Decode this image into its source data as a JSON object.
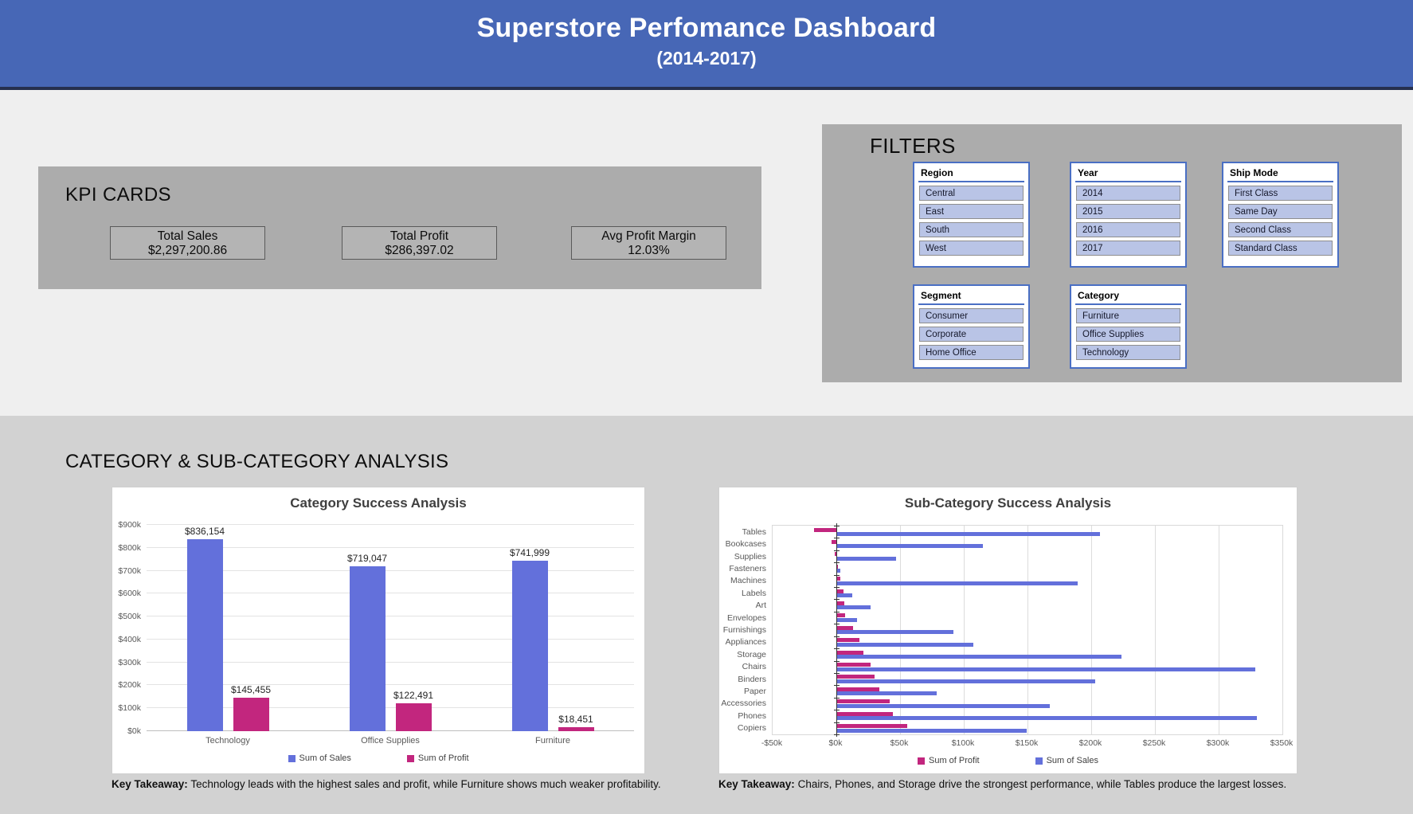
{
  "header": {
    "title": "Superstore Perfomance Dashboard",
    "subtitle": "(2014-2017)"
  },
  "kpi": {
    "title": "KPI CARDS",
    "cards": [
      {
        "label": "Total Sales",
        "value": "$2,297,200.86"
      },
      {
        "label": "Total Profit",
        "value": "$286,397.02"
      },
      {
        "label": "Avg Profit Margin",
        "value": "12.03%"
      }
    ]
  },
  "filters": {
    "title": "FILTERS",
    "slicers": [
      {
        "name": "Region",
        "items": [
          "Central",
          "East",
          "South",
          "West"
        ]
      },
      {
        "name": "Year",
        "items": [
          "2014",
          "2015",
          "2016",
          "2017"
        ]
      },
      {
        "name": "Ship Mode",
        "items": [
          "First Class",
          "Same Day",
          "Second Class",
          "Standard Class"
        ]
      },
      {
        "name": "Segment",
        "items": [
          "Consumer",
          "Corporate",
          "Home Office"
        ]
      },
      {
        "name": "Category",
        "items": [
          "Furniture",
          "Office Supplies",
          "Technology"
        ]
      }
    ]
  },
  "analysis": {
    "title": "CATEGORY & SUB-CATEGORY ANALYSIS",
    "takeaways": [
      {
        "prefix": "Key Takeaway:",
        "text": " Technology leads with the highest sales and profit, while Furniture shows much weaker profitability."
      },
      {
        "prefix": "Key Takeaway:",
        "text": " Chairs, Phones, and Storage drive the strongest performance, while Tables produce the largest losses."
      }
    ]
  },
  "colors": {
    "header_bg": "#4767b6",
    "header_border": "#26304f",
    "panel_gray": "#acacac",
    "bottom_gray": "#d2d2d2",
    "slicer_border_blue": "#4a6fc4",
    "slicer_item_fill": "#b9c4e6",
    "sales_bar": "#6370db",
    "profit_bar": "#c2267e"
  },
  "chart_data": [
    {
      "id": "category-success",
      "type": "bar",
      "title": "Category Success Analysis",
      "categories": [
        "Technology",
        "Office Supplies",
        "Furniture"
      ],
      "series": [
        {
          "name": "Sum of Sales",
          "color": "#6370db",
          "values": [
            836154,
            719047,
            741999
          ],
          "labels": [
            "$836,154",
            "$719,047",
            "$741,999"
          ]
        },
        {
          "name": "Sum of Profit",
          "color": "#c2267e",
          "values": [
            145455,
            122491,
            18451
          ],
          "labels": [
            "$145,455",
            "$122,491",
            "$18,451"
          ]
        }
      ],
      "ylim": [
        0,
        900000
      ],
      "yticks": [
        "$0k",
        "$100k",
        "$200k",
        "$300k",
        "$400k",
        "$500k",
        "$600k",
        "$700k",
        "$800k",
        "$900k"
      ],
      "grid": true,
      "legend_position": "bottom"
    },
    {
      "id": "subcategory-success",
      "type": "bar-horizontal",
      "title": "Sub-Category Success Analysis",
      "categories": [
        "Tables",
        "Bookcases",
        "Supplies",
        "Fasteners",
        "Machines",
        "Labels",
        "Art",
        "Envelopes",
        "Furnishings",
        "Appliances",
        "Storage",
        "Chairs",
        "Binders",
        "Paper",
        "Accessories",
        "Phones",
        "Copiers"
      ],
      "series": [
        {
          "name": "Sum of Profit",
          "color": "#c2267e",
          "values": [
            -17725,
            -3473,
            -1189,
            950,
            3385,
            5546,
            6528,
            6964,
            13059,
            18138,
            21279,
            26590,
            30222,
            34054,
            41937,
            44516,
            55618
          ]
        },
        {
          "name": "Sum of Sales",
          "color": "#6370db",
          "values": [
            206966,
            114880,
            46674,
            3024,
            189239,
            12486,
            27119,
            16476,
            91705,
            107532,
            223844,
            328449,
            203413,
            78479,
            167380,
            330007,
            149528
          ]
        }
      ],
      "xlim": [
        -50000,
        350000
      ],
      "xticks": [
        "-$50k",
        "$0k",
        "$50k",
        "$100k",
        "$150k",
        "$200k",
        "$250k",
        "$300k",
        "$350k"
      ],
      "grid": true,
      "legend_position": "bottom"
    }
  ]
}
